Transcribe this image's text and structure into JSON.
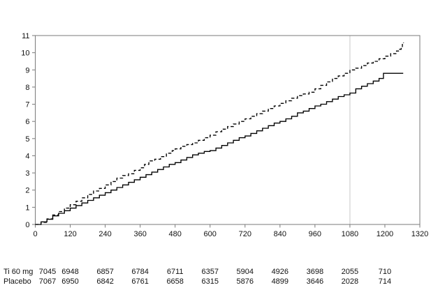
{
  "page": {
    "background": "#ffffff"
  },
  "chart_data": {
    "type": "line",
    "subtype": "step-cumulative-incidence",
    "title": "",
    "xlabel": "",
    "ylabel": "",
    "xlim": [
      0,
      1320
    ],
    "ylim": [
      0,
      11
    ],
    "grid": false,
    "legend": "none",
    "axis_color": "#7a7a7a",
    "curve_color": "#000000",
    "reference_line_x": 1080,
    "reference_line_color": "#dcdcdc",
    "x_ticks": [
      0,
      120,
      240,
      360,
      480,
      600,
      720,
      840,
      960,
      1080,
      1200,
      1320
    ],
    "y_ticks": [
      0,
      1,
      2,
      3,
      4,
      5,
      6,
      7,
      8,
      9,
      10,
      11
    ],
    "series": [
      {
        "name": "dashed-curve",
        "style": "dashed",
        "points": [
          [
            0,
            0
          ],
          [
            20,
            0.12
          ],
          [
            40,
            0.32
          ],
          [
            60,
            0.55
          ],
          [
            80,
            0.75
          ],
          [
            100,
            0.95
          ],
          [
            120,
            1.15
          ],
          [
            140,
            1.35
          ],
          [
            160,
            1.55
          ],
          [
            180,
            1.75
          ],
          [
            200,
            1.95
          ],
          [
            220,
            2.1
          ],
          [
            240,
            2.3
          ],
          [
            260,
            2.5
          ],
          [
            280,
            2.7
          ],
          [
            300,
            2.85
          ],
          [
            320,
            2.95
          ],
          [
            340,
            3.15
          ],
          [
            360,
            3.3
          ],
          [
            375,
            3.5
          ],
          [
            390,
            3.7
          ],
          [
            410,
            3.8
          ],
          [
            430,
            3.95
          ],
          [
            450,
            4.15
          ],
          [
            470,
            4.3
          ],
          [
            480,
            4.4
          ],
          [
            500,
            4.55
          ],
          [
            520,
            4.65
          ],
          [
            540,
            4.75
          ],
          [
            560,
            4.9
          ],
          [
            580,
            5.05
          ],
          [
            600,
            5.2
          ],
          [
            620,
            5.4
          ],
          [
            640,
            5.55
          ],
          [
            660,
            5.7
          ],
          [
            680,
            5.85
          ],
          [
            700,
            6.0
          ],
          [
            720,
            6.15
          ],
          [
            740,
            6.3
          ],
          [
            760,
            6.45
          ],
          [
            780,
            6.6
          ],
          [
            800,
            6.75
          ],
          [
            820,
            6.9
          ],
          [
            840,
            7.05
          ],
          [
            860,
            7.2
          ],
          [
            880,
            7.35
          ],
          [
            900,
            7.5
          ],
          [
            920,
            7.6
          ],
          [
            940,
            7.7
          ],
          [
            960,
            7.9
          ],
          [
            980,
            8.1
          ],
          [
            1000,
            8.3
          ],
          [
            1020,
            8.5
          ],
          [
            1040,
            8.65
          ],
          [
            1060,
            8.8
          ],
          [
            1080,
            9.0
          ],
          [
            1100,
            9.1
          ],
          [
            1120,
            9.25
          ],
          [
            1140,
            9.4
          ],
          [
            1160,
            9.5
          ],
          [
            1180,
            9.65
          ],
          [
            1200,
            9.8
          ],
          [
            1220,
            9.95
          ],
          [
            1240,
            10.1
          ],
          [
            1250,
            10.2
          ],
          [
            1256,
            10.3
          ],
          [
            1260,
            10.55
          ],
          [
            1264,
            10.6
          ]
        ]
      },
      {
        "name": "solid-curve",
        "style": "solid",
        "points": [
          [
            0,
            0
          ],
          [
            20,
            0.15
          ],
          [
            40,
            0.3
          ],
          [
            60,
            0.5
          ],
          [
            80,
            0.65
          ],
          [
            100,
            0.8
          ],
          [
            120,
            0.95
          ],
          [
            140,
            1.1
          ],
          [
            160,
            1.25
          ],
          [
            180,
            1.4
          ],
          [
            200,
            1.55
          ],
          [
            220,
            1.7
          ],
          [
            240,
            1.85
          ],
          [
            260,
            2.0
          ],
          [
            280,
            2.15
          ],
          [
            300,
            2.3
          ],
          [
            320,
            2.45
          ],
          [
            340,
            2.6
          ],
          [
            360,
            2.75
          ],
          [
            380,
            2.9
          ],
          [
            400,
            3.05
          ],
          [
            420,
            3.2
          ],
          [
            440,
            3.35
          ],
          [
            460,
            3.5
          ],
          [
            480,
            3.6
          ],
          [
            500,
            3.75
          ],
          [
            520,
            3.9
          ],
          [
            540,
            4.05
          ],
          [
            560,
            4.15
          ],
          [
            580,
            4.25
          ],
          [
            600,
            4.3
          ],
          [
            620,
            4.45
          ],
          [
            640,
            4.6
          ],
          [
            660,
            4.75
          ],
          [
            680,
            4.9
          ],
          [
            700,
            5.05
          ],
          [
            720,
            5.15
          ],
          [
            740,
            5.3
          ],
          [
            760,
            5.45
          ],
          [
            780,
            5.6
          ],
          [
            800,
            5.75
          ],
          [
            820,
            5.9
          ],
          [
            840,
            6.0
          ],
          [
            860,
            6.15
          ],
          [
            880,
            6.3
          ],
          [
            900,
            6.5
          ],
          [
            920,
            6.6
          ],
          [
            940,
            6.75
          ],
          [
            960,
            6.9
          ],
          [
            980,
            7.0
          ],
          [
            1000,
            7.15
          ],
          [
            1020,
            7.3
          ],
          [
            1040,
            7.45
          ],
          [
            1060,
            7.55
          ],
          [
            1080,
            7.65
          ],
          [
            1100,
            7.9
          ],
          [
            1120,
            8.05
          ],
          [
            1140,
            8.2
          ],
          [
            1160,
            8.35
          ],
          [
            1180,
            8.5
          ],
          [
            1195,
            8.8
          ],
          [
            1263,
            8.8
          ]
        ]
      }
    ],
    "risk_table": {
      "columns_at_x": [
        0,
        120,
        240,
        360,
        480,
        600,
        720,
        840,
        960,
        1080,
        1200
      ],
      "rows": [
        {
          "label": "Ti 60 mg",
          "values": [
            "7045",
            "6948",
            "6857",
            "6784",
            "6711",
            "6357",
            "5904",
            "4926",
            "3698",
            "2055",
            "710"
          ]
        },
        {
          "label": "Placebo",
          "values": [
            "7067",
            "6950",
            "6842",
            "6761",
            "6658",
            "6315",
            "5876",
            "4899",
            "3646",
            "2028",
            "714"
          ]
        }
      ]
    }
  }
}
